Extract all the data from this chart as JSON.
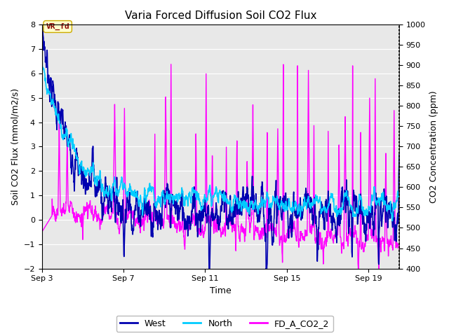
{
  "title": "Varia Forced Diffusion Soil CO2 Flux",
  "xlabel": "Time",
  "ylabel_left": "Soil CO2 Flux (mmol/m2/s)",
  "ylabel_right": "CO2 Concentration (ppm)",
  "ylim_left": [
    -2.0,
    8.0
  ],
  "ylim_right": [
    400,
    1000
  ],
  "yticks_left": [
    -2.0,
    -1.0,
    0.0,
    1.0,
    2.0,
    3.0,
    4.0,
    5.0,
    6.0,
    7.0,
    8.0
  ],
  "yticks_right": [
    400,
    450,
    500,
    550,
    600,
    650,
    700,
    750,
    800,
    850,
    900,
    950,
    1000
  ],
  "xtick_positions": [
    0,
    4,
    8,
    12,
    16
  ],
  "xtick_labels": [
    "Sep 3",
    "Sep 7",
    "Sep 11",
    "Sep 15",
    "Sep 19"
  ],
  "legend": [
    "West",
    "North",
    "FD_A_CO2_2"
  ],
  "colors": {
    "West": "#0000b0",
    "North": "#00ccff",
    "FD_A_CO2_2": "#ff00ff"
  },
  "annotation_text": "VR_fd",
  "bg_outer": "#ffffff",
  "bg_inner": "#e8e8e8",
  "grid_color": "#ffffff",
  "title_fontsize": 11,
  "label_fontsize": 9,
  "tick_fontsize": 8,
  "legend_fontsize": 9,
  "linewidth_west": 1.2,
  "linewidth_north": 1.2,
  "linewidth_co2": 1.0
}
